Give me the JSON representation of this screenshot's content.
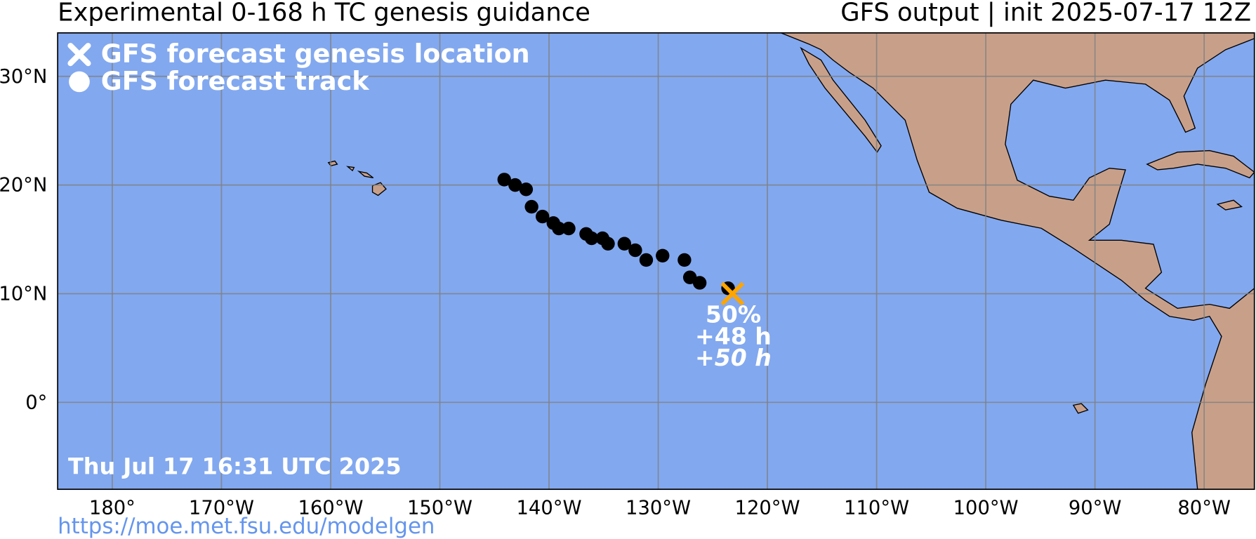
{
  "chart_data": {
    "type": "scatter",
    "title": "Experimental 0-168 h TC genesis guidance",
    "subtitle": "GFS output | init 2025-07-17 12Z",
    "xlim": [
      -185,
      -75.4
    ],
    "ylim": [
      -8,
      34
    ],
    "xticks": [
      {
        "value": -180,
        "label": "180°"
      },
      {
        "value": -170,
        "label": "170°W"
      },
      {
        "value": -160,
        "label": "160°W"
      },
      {
        "value": -150,
        "label": "150°W"
      },
      {
        "value": -140,
        "label": "140°W"
      },
      {
        "value": -130,
        "label": "130°W"
      },
      {
        "value": -120,
        "label": "120°W"
      },
      {
        "value": -110,
        "label": "110°W"
      },
      {
        "value": -100,
        "label": "100°W"
      },
      {
        "value": -90,
        "label": "90°W"
      },
      {
        "value": -80,
        "label": "80°W"
      }
    ],
    "yticks": [
      {
        "value": 0,
        "label": "0°"
      },
      {
        "value": 10,
        "label": "10°N"
      },
      {
        "value": 20,
        "label": "20°N"
      },
      {
        "value": 30,
        "label": "30°N"
      }
    ],
    "grid": true,
    "series": [
      {
        "name": "GFS forecast track",
        "color": "#000000",
        "marker": "circle",
        "x": [
          -144.1,
          -143.1,
          -142.1,
          -141.6,
          -140.6,
          -139.6,
          -139.1,
          -138.2,
          -136.6,
          -136.1,
          -135.1,
          -134.6,
          -133.1,
          -132.1,
          -131.1,
          -129.6,
          -127.6,
          -127.1,
          -126.2,
          -123.6
        ],
        "y": [
          20.5,
          20.0,
          19.6,
          18.0,
          17.1,
          16.5,
          16.0,
          16.0,
          15.5,
          15.1,
          15.1,
          14.6,
          14.6,
          14.0,
          13.1,
          13.5,
          13.1,
          11.5,
          11.0,
          10.5
        ]
      },
      {
        "name": "GFS forecast genesis location",
        "color": "#FFA500",
        "marker": "x",
        "x": [
          -123.2
        ],
        "y": [
          10.0
        ]
      }
    ],
    "annotations": [
      "50%",
      "+48 h",
      "+50 h"
    ],
    "timestamp": "Thu Jul 17 16:31 UTC 2025",
    "url": "https://moe.met.fsu.edu/modelgen"
  }
}
